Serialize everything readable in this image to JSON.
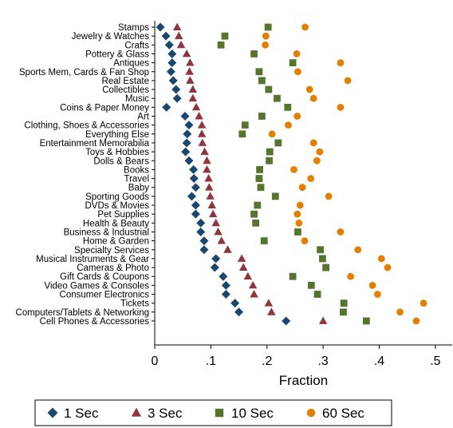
{
  "chart_data": {
    "type": "scatter",
    "xlabel": "Fraction",
    "xlim": [
      0,
      0.53
    ],
    "xticks": [
      "0",
      ".1",
      ".2",
      ".3",
      ".4",
      ".5"
    ],
    "xtick_values": [
      0,
      0.1,
      0.2,
      0.3,
      0.4,
      0.5
    ],
    "categories": [
      "Stamps",
      "Jewelry & Watches",
      "Crafts",
      "Pottery & Glass",
      "Antiques",
      "Sports Mem, Cards & Fan Shop",
      "Real Estate",
      "Collectibles",
      "Music",
      "Coins & Paper Money",
      "Art",
      "Clothing, Shoes & Accessories",
      "Everything Else",
      "Entertainment Memorabilia",
      "Toys & Hobbies",
      "Dolls & Bears",
      "Books",
      "Travel",
      "Baby",
      "Sporting Goods",
      "DVDs & Movies",
      "Pet Supplies",
      "Health & Beauty",
      "Business & Industrial",
      "Home & Garden",
      "Specialty Services",
      "Musical Instruments & Gear",
      "Cameras & Photo",
      "Gift Cards & Coupons",
      "Video Games & Consoles",
      "Consumer Electronics",
      "Tickets",
      "Computers/Tablets & Networking",
      "Cell Phones & Accessories"
    ],
    "series": [
      {
        "name": "1 Sec",
        "marker": "diamond",
        "color": "#1a476f",
        "values": [
          0.01,
          0.02,
          0.026,
          0.031,
          0.031,
          0.029,
          0.033,
          0.038,
          0.04,
          0.021,
          0.054,
          0.061,
          0.058,
          0.057,
          0.055,
          0.061,
          0.069,
          0.07,
          0.073,
          0.066,
          0.073,
          0.073,
          0.082,
          0.082,
          0.088,
          0.088,
          0.109,
          0.107,
          0.122,
          0.127,
          0.127,
          0.143,
          0.15,
          0.234
        ]
      },
      {
        "name": "3 Sec",
        "marker": "triangle",
        "color": "#90353b",
        "values": [
          0.04,
          0.043,
          0.047,
          0.057,
          0.063,
          0.062,
          0.063,
          0.068,
          0.068,
          0.074,
          0.079,
          0.084,
          0.084,
          0.085,
          0.089,
          0.093,
          0.093,
          0.096,
          0.097,
          0.099,
          0.102,
          0.104,
          0.109,
          0.113,
          0.119,
          0.13,
          0.155,
          0.158,
          0.166,
          0.175,
          0.177,
          0.203,
          0.208,
          0.3
        ]
      },
      {
        "name": "10 Sec",
        "marker": "square",
        "color": "#55752f",
        "values": [
          0.202,
          0.125,
          0.118,
          0.177,
          0.246,
          0.186,
          0.191,
          0.203,
          0.218,
          0.237,
          0.191,
          0.161,
          0.156,
          0.22,
          0.205,
          0.204,
          0.187,
          0.186,
          0.189,
          0.215,
          0.183,
          0.177,
          0.18,
          0.255,
          0.195,
          0.295,
          0.299,
          0.305,
          0.246,
          0.279,
          0.29,
          0.337,
          0.336,
          0.377
        ]
      },
      {
        "name": "60 Sec",
        "marker": "circle",
        "color": "#e37e00",
        "values": [
          0.268,
          0.198,
          0.197,
          0.253,
          0.331,
          0.255,
          0.344,
          0.276,
          0.283,
          0.331,
          0.254,
          0.238,
          0.209,
          0.283,
          0.294,
          0.289,
          0.248,
          0.278,
          0.263,
          0.31,
          0.259,
          0.254,
          0.257,
          0.331,
          0.267,
          0.362,
          0.404,
          0.415,
          0.349,
          0.388,
          0.397,
          0.479,
          0.437,
          0.466
        ]
      }
    ],
    "legend": "bottom",
    "grid": false
  }
}
